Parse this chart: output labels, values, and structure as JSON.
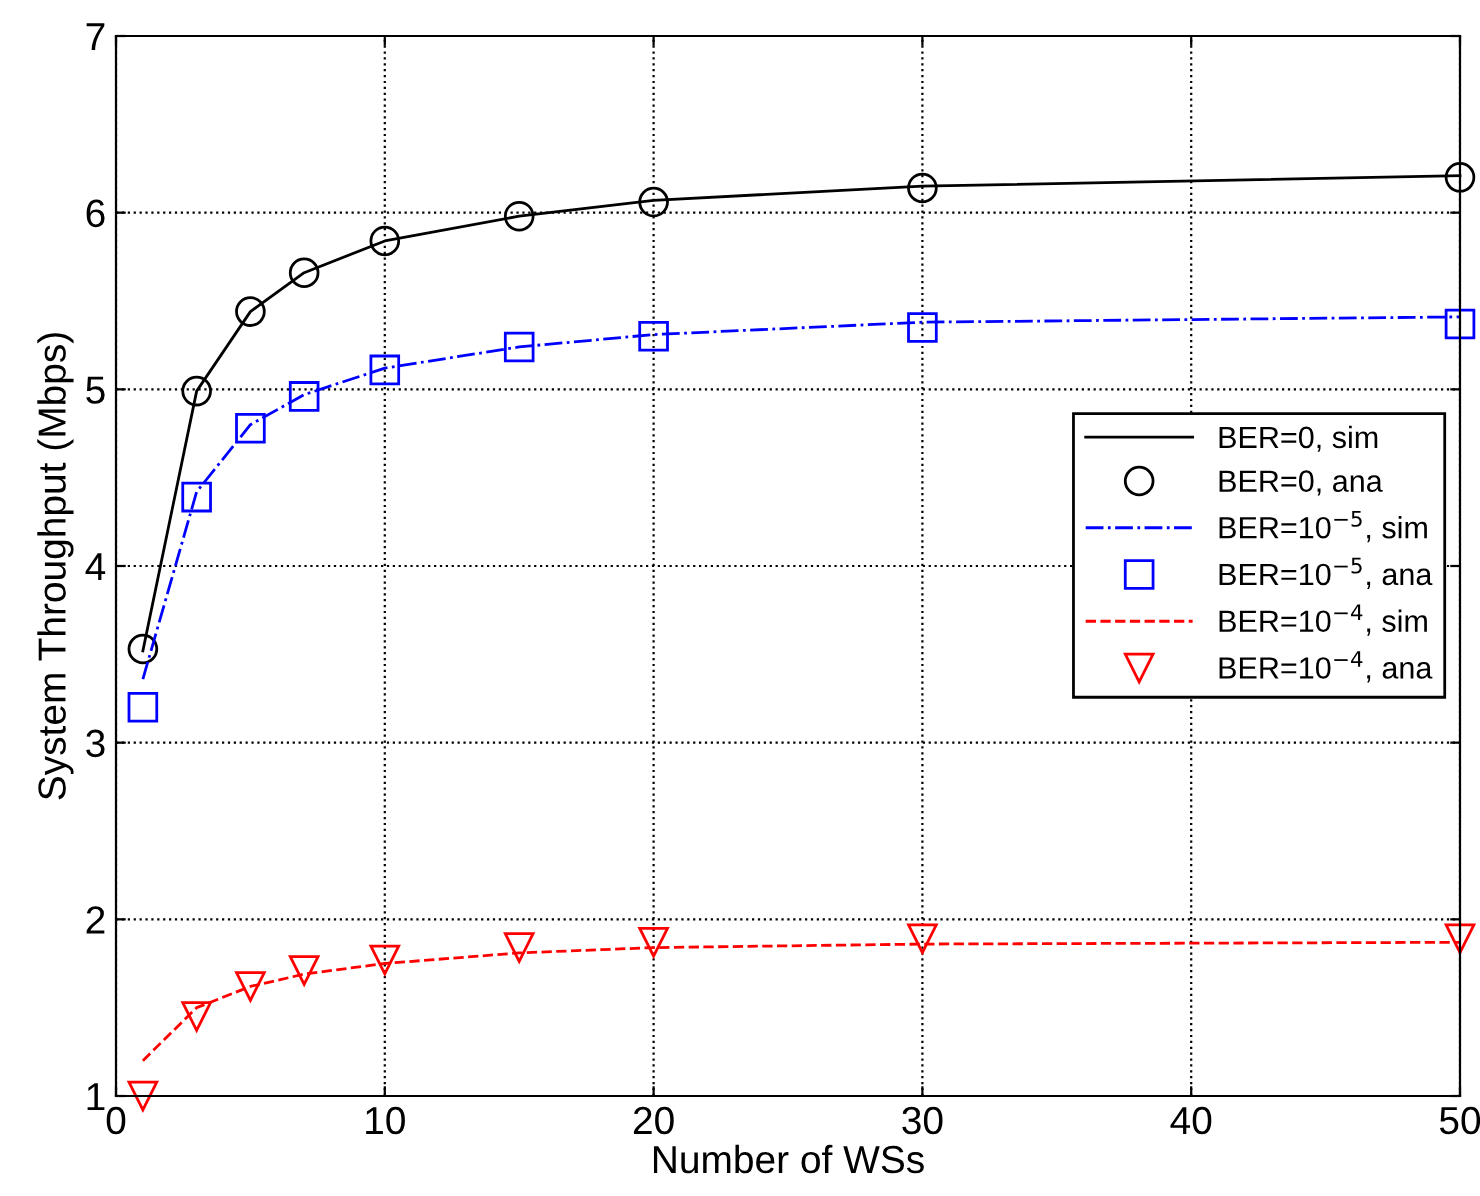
{
  "chart_data": {
    "type": "line",
    "xlabel": "Number of WSs",
    "ylabel": "System Throughput (Mbps)",
    "xlim": [
      0,
      50
    ],
    "ylim": [
      1,
      7
    ],
    "xticks": [
      0,
      10,
      20,
      30,
      40,
      50
    ],
    "yticks": [
      1,
      2,
      3,
      4,
      5,
      6,
      7
    ],
    "grid": true,
    "legend": "right",
    "x": [
      1,
      3,
      5,
      7,
      10,
      15,
      20,
      30,
      50
    ],
    "series": [
      {
        "name": "BER=0, sim",
        "color": "#000000",
        "line_style": "solid",
        "marker": "none",
        "values": [
          3.52,
          4.99,
          5.44,
          5.66,
          5.84,
          5.98,
          6.07,
          6.15,
          6.21
        ]
      },
      {
        "name": "BER=0, ana",
        "type": "scatter",
        "color": "#000000",
        "marker": "circle",
        "values": [
          3.53,
          4.99,
          5.44,
          5.66,
          5.84,
          5.98,
          6.06,
          6.14,
          6.2
        ]
      },
      {
        "name": "BER=10$^{−5}$, sim",
        "color": "#0000ff",
        "line_style": "dashdot",
        "marker": "none",
        "values": [
          3.36,
          4.42,
          4.8,
          4.97,
          5.12,
          5.24,
          5.31,
          5.38,
          5.41
        ]
      },
      {
        "name": "BER=10$^{−5}$, ana",
        "type": "scatter",
        "color": "#0000ff",
        "marker": "square",
        "values": [
          3.2,
          4.39,
          4.78,
          4.96,
          5.11,
          5.24,
          5.3,
          5.35,
          5.37
        ]
      },
      {
        "name": "BER=10$^{−4}$, sim",
        "color": "#ff0000",
        "line_style": "dashed",
        "marker": "none",
        "values": [
          1.2,
          1.5,
          1.62,
          1.69,
          1.75,
          1.81,
          1.84,
          1.86,
          1.87
        ]
      },
      {
        "name": "BER=10$^{−4}$, ana",
        "type": "scatter",
        "color": "#ff0000",
        "marker": "triangle",
        "values": [
          1.0,
          1.45,
          1.62,
          1.71,
          1.77,
          1.84,
          1.87,
          1.89,
          1.89
        ]
      }
    ]
  }
}
